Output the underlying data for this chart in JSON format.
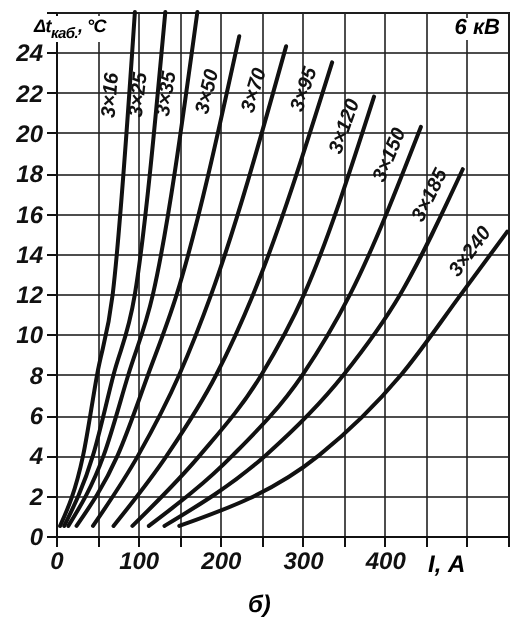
{
  "chart_data": {
    "type": "line",
    "xlabel": "I, А",
    "ylabel": "Δt$_{каб.}$, °C",
    "annotations": [
      "6 кВ",
      "б)"
    ],
    "xlim": [
      0,
      550
    ],
    "ylim": [
      0,
      26
    ],
    "xticks": [
      0,
      {
        "value": 50,
        "label": null
      },
      100,
      {
        "value": 150,
        "label": null
      },
      200,
      {
        "value": 250,
        "label": null
      },
      300,
      {
        "value": 350,
        "label": null
      },
      400,
      {
        "value": 450,
        "label": null
      },
      {
        "value": 500,
        "label": null
      },
      {
        "value": 550,
        "label": null
      }
    ],
    "yticks": [
      0,
      2,
      4,
      6,
      8,
      10,
      12,
      14,
      16,
      18,
      20,
      22,
      24,
      {
        "value": 26,
        "label": null
      }
    ],
    "grid": true,
    "line_style": "solid",
    "marker": "none",
    "series": [
      {
        "name": "3×16",
        "color": "#111111",
        "x": [
          5,
          33,
          50,
          69,
          96
        ],
        "values": [
          0.5,
          4,
          8,
          12,
          26
        ]
      },
      {
        "name": "3×25",
        "color": "#111111",
        "x": [
          10,
          45,
          70,
          96,
          133
        ],
        "values": [
          0.5,
          4,
          8,
          12,
          26
        ]
      },
      {
        "name": "3×35",
        "color": "#111111",
        "x": [
          15,
          58,
          88,
          118,
          172
        ],
        "values": [
          0.5,
          4,
          8,
          12,
          26
        ]
      },
      {
        "name": "3×50",
        "color": "#111111",
        "x": [
          25,
          75,
          112,
          147,
          223
        ],
        "values": [
          0.5,
          4,
          8,
          12,
          24.8
        ]
      },
      {
        "name": "3×70",
        "color": "#111111",
        "x": [
          45,
          100,
          150,
          189,
          280
        ],
        "values": [
          0.5,
          4,
          8,
          12,
          24.3
        ]
      },
      {
        "name": "3×95",
        "color": "#111111",
        "x": [
          70,
          135,
          195,
          240,
          336
        ],
        "values": [
          0.5,
          4,
          8,
          12,
          23.5
        ]
      },
      {
        "name": "3×120",
        "color": "#111111",
        "x": [
          93,
          175,
          250,
          302,
          387
        ],
        "values": [
          0.5,
          4,
          8,
          12,
          21.8
        ]
      },
      {
        "name": "3×150",
        "color": "#111111",
        "x": [
          113,
          215,
          300,
          358,
          444
        ],
        "values": [
          0.5,
          4,
          8,
          12,
          20.3
        ]
      },
      {
        "name": "3×185",
        "color": "#111111",
        "x": [
          132,
          255,
          350,
          419,
          495
        ],
        "values": [
          0.5,
          4,
          8,
          12,
          18.2
        ]
      },
      {
        "name": "3×240",
        "color": "#111111",
        "x": [
          150,
          320,
          420,
          493,
          549
        ],
        "values": [
          0.5,
          4,
          8,
          12,
          15.1
        ]
      }
    ]
  }
}
